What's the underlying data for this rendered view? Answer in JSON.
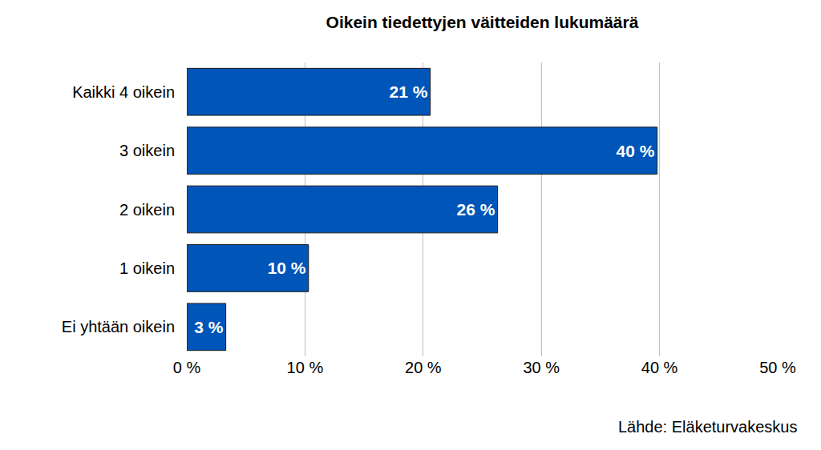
{
  "chart_data": {
    "type": "bar",
    "orientation": "horizontal",
    "title": "Oikein tiedettyjen väitteiden lukumäärä",
    "source": "Lähde: Eläketurvakeskus",
    "categories": [
      "Kaikki 4 oikein",
      "3 oikein",
      "2 oikein",
      "1 oikein",
      "Ei yhtään oikein"
    ],
    "values": [
      20.6,
      39.8,
      26.3,
      10.3,
      3.3
    ],
    "value_labels": [
      "21 %",
      "40 %",
      "26 %",
      "10 %",
      "3 %"
    ],
    "data_labels": true,
    "color": "#0055b8",
    "xlim": [
      0,
      50
    ],
    "xticks": [
      {
        "value": 0,
        "label": "0 %"
      },
      {
        "value": 10,
        "label": "10 %"
      },
      {
        "value": 20,
        "label": "20 %"
      },
      {
        "value": 30,
        "label": "30 %"
      },
      {
        "value": 40,
        "label": "40 %"
      },
      {
        "value": 50,
        "label": "50 %"
      }
    ],
    "grid": true
  }
}
